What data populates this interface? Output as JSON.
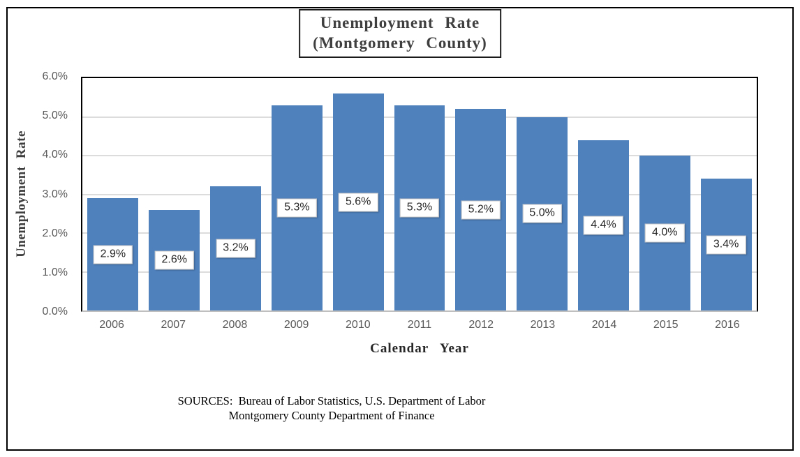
{
  "title": {
    "line1": "Unemployment Rate",
    "line2": "(Montgomery County)"
  },
  "axes": {
    "y_title": "Unemployment Rate",
    "x_title": "Calendar Year"
  },
  "footer": {
    "sources_line1": "SOURCES:  Bureau of Labor Statistics, U.S. Department of Labor",
    "sources_line2": "Montgomery County Department of Finance"
  },
  "colors": {
    "bar": "#4f81bd",
    "gridline": "#dcdcdc",
    "axis_line": "#bfbfbf",
    "tick_text": "#595959",
    "plot_border": "#000000"
  },
  "chart_data": {
    "type": "bar",
    "title": "Unemployment Rate (Montgomery County)",
    "categories": [
      "2006",
      "2007",
      "2008",
      "2009",
      "2010",
      "2011",
      "2012",
      "2013",
      "2014",
      "2015",
      "2016"
    ],
    "values": [
      2.9,
      2.6,
      3.2,
      5.3,
      5.6,
      5.3,
      5.2,
      5.0,
      4.4,
      4.0,
      3.4
    ],
    "data_labels": [
      "2.9%",
      "2.6%",
      "3.2%",
      "5.3%",
      "5.6%",
      "5.3%",
      "5.2%",
      "5.0%",
      "4.4%",
      "4.0%",
      "3.4%"
    ],
    "xlabel": "Calendar Year",
    "ylabel": "Unemployment Rate",
    "ylim": [
      0,
      6
    ],
    "y_tick_step": 1,
    "y_tick_labels": [
      "0.0%",
      "1.0%",
      "2.0%",
      "3.0%",
      "4.0%",
      "5.0%",
      "6.0%"
    ],
    "grid": true,
    "legend": "none",
    "bar_gap_fraction": 0.17
  }
}
